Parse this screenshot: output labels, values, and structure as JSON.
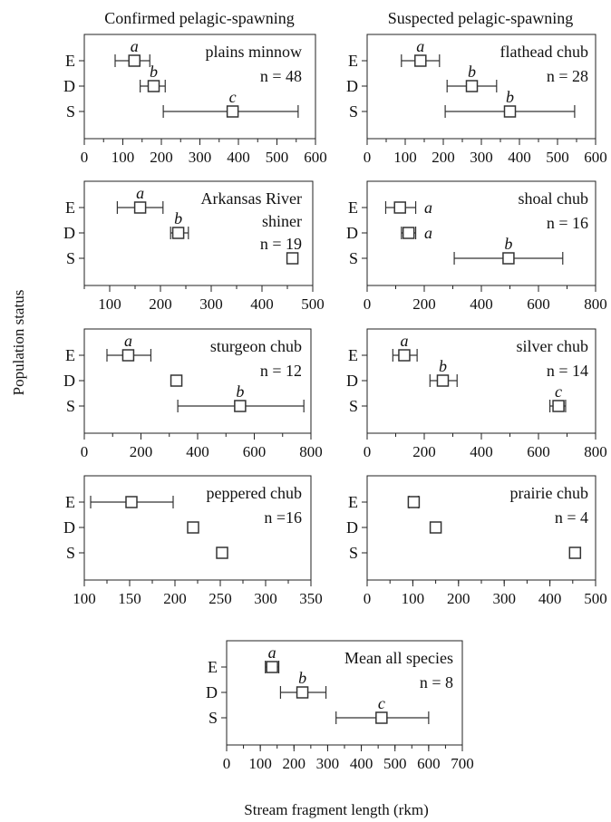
{
  "column_headers": [
    "Confirmed pelagic-spawning",
    "Suspected pelagic-spawning"
  ],
  "ylabel": "Population status",
  "xlabel": "Stream fragment length (rkm)",
  "chart_data": [
    {
      "type": "scatter",
      "id": "plains",
      "categories": [
        "E",
        "D",
        "S"
      ],
      "xlim": [
        0,
        600
      ],
      "xticks": [
        0,
        100,
        200,
        300,
        400,
        500,
        600
      ],
      "points": [
        {
          "cat": "E",
          "mean": 130,
          "lo": 80,
          "hi": 170,
          "letter": "a"
        },
        {
          "cat": "D",
          "mean": 180,
          "lo": 145,
          "hi": 210,
          "letter": "b"
        },
        {
          "cat": "S",
          "mean": 385,
          "lo": 205,
          "hi": 555,
          "letter": "c"
        }
      ],
      "labels": [
        "plains minnow",
        "n = 48"
      ]
    },
    {
      "type": "scatter",
      "id": "flathead",
      "categories": [
        "E",
        "D",
        "S"
      ],
      "xlim": [
        0,
        600
      ],
      "xticks": [
        0,
        100,
        200,
        300,
        400,
        500,
        600
      ],
      "points": [
        {
          "cat": "E",
          "mean": 140,
          "lo": 90,
          "hi": 190,
          "letter": "a"
        },
        {
          "cat": "D",
          "mean": 275,
          "lo": 210,
          "hi": 340,
          "letter": "b"
        },
        {
          "cat": "S",
          "mean": 375,
          "lo": 205,
          "hi": 545,
          "letter": "b"
        }
      ],
      "labels": [
        "flathead chub",
        "n = 28"
      ]
    },
    {
      "type": "scatter",
      "id": "arkansas",
      "categories": [
        "E",
        "D",
        "S"
      ],
      "xlim": [
        50,
        500
      ],
      "xticks": [
        100,
        200,
        300,
        400,
        500
      ],
      "points": [
        {
          "cat": "E",
          "mean": 160,
          "lo": 115,
          "hi": 205,
          "letter": "a"
        },
        {
          "cat": "D",
          "mean": 235,
          "lo": 220,
          "hi": 255,
          "letter": "b"
        },
        {
          "cat": "S",
          "mean": 460,
          "letter": ""
        }
      ],
      "labels": [
        "Arkansas River",
        "shiner",
        "n = 19"
      ]
    },
    {
      "type": "scatter",
      "id": "shoal",
      "categories": [
        "E",
        "D",
        "S"
      ],
      "xlim": [
        0,
        800
      ],
      "xticks": [
        0,
        200,
        400,
        600,
        800
      ],
      "points": [
        {
          "cat": "E",
          "mean": 115,
          "lo": 65,
          "hi": 170,
          "letter": "a"
        },
        {
          "cat": "D",
          "mean": 145,
          "lo": 120,
          "hi": 170,
          "letter": "a"
        },
        {
          "cat": "S",
          "mean": 495,
          "lo": 305,
          "hi": 685,
          "letter": "b"
        }
      ],
      "labels": [
        "shoal chub",
        "n = 16"
      ]
    },
    {
      "type": "scatter",
      "id": "sturgeon",
      "categories": [
        "E",
        "D",
        "S"
      ],
      "xlim": [
        0,
        800
      ],
      "xticks": [
        0,
        200,
        400,
        600,
        800
      ],
      "points": [
        {
          "cat": "E",
          "mean": 155,
          "lo": 80,
          "hi": 235,
          "letter": "a"
        },
        {
          "cat": "D",
          "mean": 325,
          "letter": ""
        },
        {
          "cat": "S",
          "mean": 550,
          "lo": 330,
          "hi": 775,
          "letter": "b"
        }
      ],
      "labels": [
        "sturgeon chub",
        "n = 12"
      ]
    },
    {
      "type": "scatter",
      "id": "silver",
      "categories": [
        "E",
        "D",
        "S"
      ],
      "xlim": [
        0,
        800
      ],
      "xticks": [
        0,
        200,
        400,
        600,
        800
      ],
      "points": [
        {
          "cat": "E",
          "mean": 130,
          "lo": 90,
          "hi": 175,
          "letter": "a"
        },
        {
          "cat": "D",
          "mean": 265,
          "lo": 220,
          "hi": 315,
          "letter": "b"
        },
        {
          "cat": "S",
          "mean": 670,
          "lo": 640,
          "hi": 695,
          "letter": "c"
        }
      ],
      "labels": [
        "silver chub",
        "n = 14"
      ]
    },
    {
      "type": "scatter",
      "id": "peppered",
      "categories": [
        "E",
        "D",
        "S"
      ],
      "xlim": [
        100,
        350
      ],
      "xticks": [
        100,
        150,
        200,
        250,
        300,
        350
      ],
      "points": [
        {
          "cat": "E",
          "mean": 152,
          "lo": 107,
          "hi": 198,
          "letter": ""
        },
        {
          "cat": "D",
          "mean": 220,
          "letter": ""
        },
        {
          "cat": "S",
          "mean": 252,
          "letter": ""
        }
      ],
      "labels": [
        "peppered chub",
        "n =16"
      ]
    },
    {
      "type": "scatter",
      "id": "prairie",
      "categories": [
        "E",
        "D",
        "S"
      ],
      "xlim": [
        0,
        500
      ],
      "xticks": [
        0,
        100,
        200,
        300,
        400,
        500
      ],
      "points": [
        {
          "cat": "E",
          "mean": 102,
          "lo": 92,
          "hi": 112,
          "letter": ""
        },
        {
          "cat": "D",
          "mean": 150,
          "letter": ""
        },
        {
          "cat": "S",
          "mean": 455,
          "letter": ""
        }
      ],
      "labels": [
        "prairie chub",
        "n = 4"
      ]
    },
    {
      "type": "scatter",
      "id": "mean",
      "categories": [
        "E",
        "D",
        "S"
      ],
      "xlim": [
        0,
        700
      ],
      "xticks": [
        0,
        100,
        200,
        300,
        400,
        500,
        600,
        700
      ],
      "points": [
        {
          "cat": "E",
          "mean": 135,
          "lo": 115,
          "hi": 155,
          "letter": "a"
        },
        {
          "cat": "D",
          "mean": 225,
          "lo": 160,
          "hi": 295,
          "letter": "b"
        },
        {
          "cat": "S",
          "mean": 460,
          "lo": 325,
          "hi": 600,
          "letter": "c"
        }
      ],
      "labels": [
        "Mean all species",
        "n = 8"
      ]
    }
  ]
}
